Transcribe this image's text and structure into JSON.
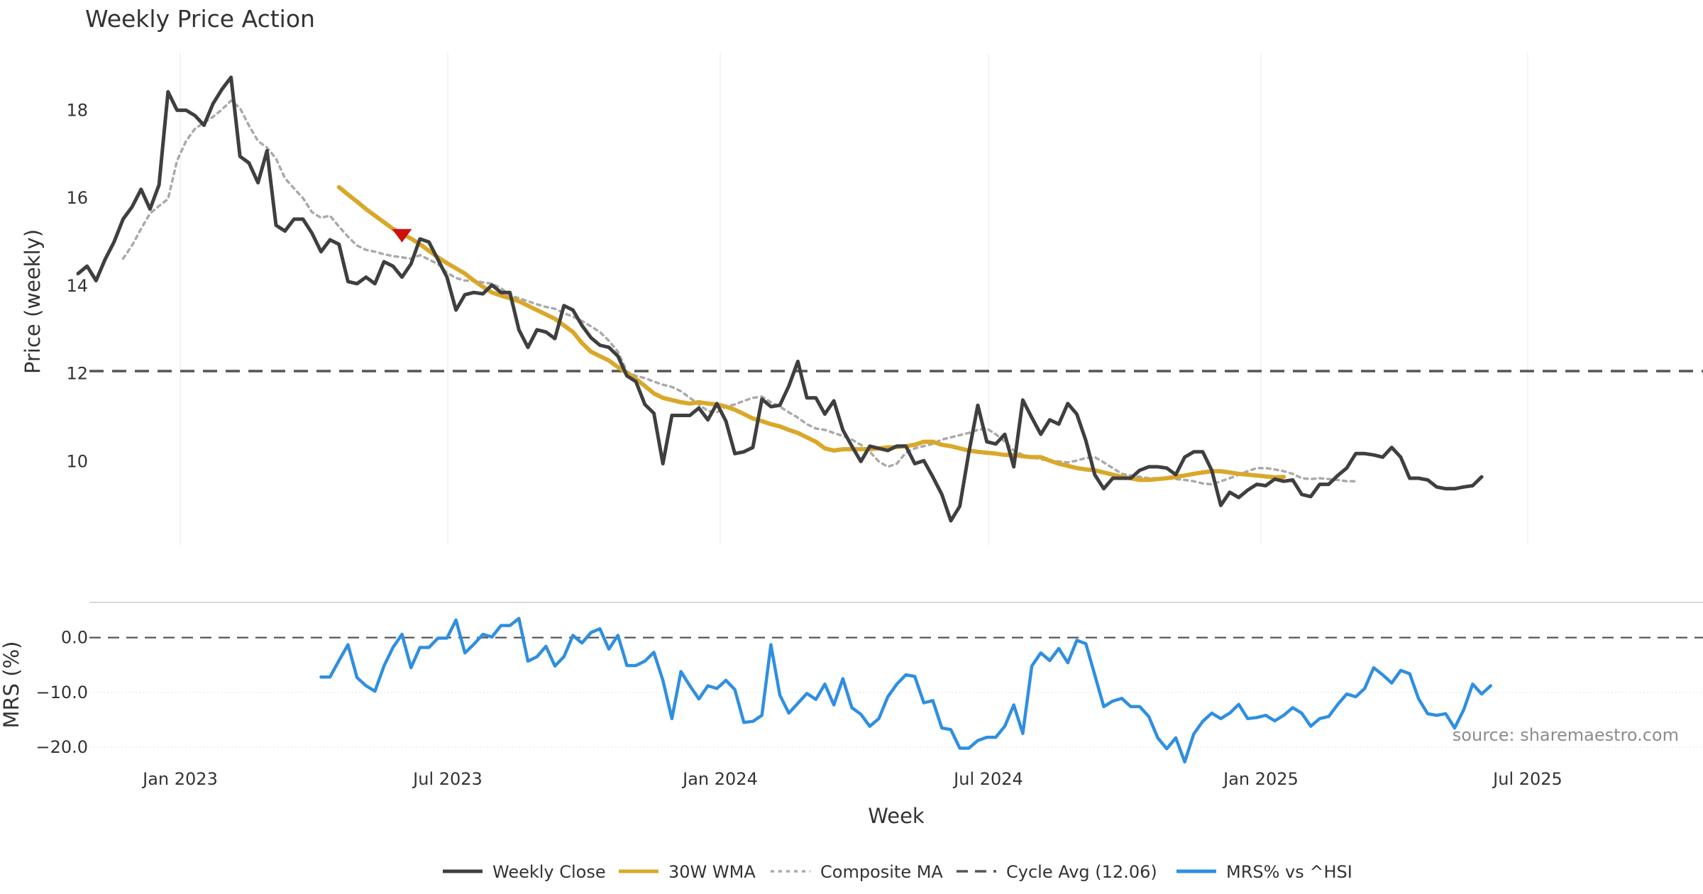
{
  "chart_data": {
    "type": "line",
    "title": "Weekly Price Action",
    "source": "source: sharemaestro.com",
    "xlabel": "Week",
    "x_tick_labels": [
      "Jan 2023",
      "Jul 2023",
      "Jan 2024",
      "Jul 2024",
      "Jan 2025",
      "Jul 2025"
    ],
    "price_panel": {
      "ylabel": "Price (weekly)",
      "ylim": [
        8.1,
        19.3
      ],
      "yticks": [
        10,
        12,
        14,
        16,
        18
      ],
      "ytick_labels": [
        "10",
        "12",
        "14",
        "16",
        "18"
      ],
      "cycle_avg": 12.06,
      "signal_marker": {
        "type": "sell-triangle",
        "week_index": 36,
        "value": 15.15,
        "color": "#cc1111"
      },
      "series": [
        {
          "name": "Weekly Close",
          "color": "#3f3f3f",
          "values": [
            14.28,
            14.45,
            14.12,
            14.6,
            15.0,
            15.52,
            15.8,
            16.2,
            15.75,
            16.3,
            18.42,
            18.0,
            18.0,
            17.88,
            17.66,
            18.15,
            18.48,
            18.75,
            16.95,
            16.8,
            16.35,
            17.08,
            15.38,
            15.25,
            15.52,
            15.52,
            15.2,
            14.78,
            15.05,
            14.95,
            14.1,
            14.05,
            14.2,
            14.05,
            14.55,
            14.45,
            14.2,
            14.5,
            15.07,
            15.0,
            14.6,
            14.2,
            13.45,
            13.8,
            13.85,
            13.82,
            14.02,
            13.85,
            13.85,
            13.0,
            12.6,
            13.0,
            12.95,
            12.8,
            13.55,
            13.45,
            13.1,
            12.82,
            12.65,
            12.6,
            12.4,
            11.95,
            11.82,
            11.3,
            11.1,
            9.95,
            11.05,
            11.05,
            11.05,
            11.22,
            10.95,
            11.32,
            10.92,
            10.18,
            10.22,
            10.32,
            11.42,
            11.25,
            11.28,
            11.72,
            12.28,
            11.45,
            11.45,
            11.08,
            11.38,
            10.72,
            10.35,
            10.0,
            10.35,
            10.3,
            10.25,
            10.35,
            10.35,
            9.95,
            10.02,
            9.65,
            9.25,
            8.65,
            8.98,
            10.2,
            11.28,
            10.45,
            10.4,
            10.62,
            9.88,
            11.4,
            11.0,
            10.62,
            10.95,
            10.85,
            11.32,
            11.08,
            10.48,
            9.7,
            9.38,
            9.62,
            9.62,
            9.62,
            9.8,
            9.88,
            9.88,
            9.85,
            9.7,
            10.1,
            10.22,
            10.22,
            9.8,
            9.0,
            9.3,
            9.18,
            9.35,
            9.48,
            9.45,
            9.6,
            9.55,
            9.58,
            9.25,
            9.2,
            9.48,
            9.48,
            9.68,
            9.85,
            10.18,
            10.18,
            10.15,
            10.1,
            10.32,
            10.1,
            9.62,
            9.62,
            9.58,
            9.42,
            9.38,
            9.38,
            9.42,
            9.45,
            9.65
          ]
        },
        {
          "name": "30W WMA",
          "color": "#d9a82a",
          "start_index": 29,
          "values": [
            16.25,
            16.08,
            15.92,
            15.75,
            15.6,
            15.45,
            15.3,
            15.18,
            15.08,
            14.95,
            14.8,
            14.65,
            14.52,
            14.4,
            14.28,
            14.12,
            13.98,
            13.85,
            13.78,
            13.72,
            13.65,
            13.55,
            13.45,
            13.35,
            13.25,
            13.1,
            12.95,
            12.7,
            12.5,
            12.4,
            12.3,
            12.15,
            12.02,
            11.88,
            11.72,
            11.55,
            11.45,
            11.4,
            11.35,
            11.32,
            11.35,
            11.32,
            11.3,
            11.25,
            11.18,
            11.08,
            10.98,
            10.92,
            10.85,
            10.8,
            10.72,
            10.65,
            10.55,
            10.45,
            10.3,
            10.25,
            10.28,
            10.28,
            10.28,
            10.28,
            10.3,
            10.32,
            10.33,
            10.35,
            10.38,
            10.45,
            10.45,
            10.38,
            10.35,
            10.3,
            10.25,
            10.22,
            10.2,
            10.18,
            10.15,
            10.15,
            10.12,
            10.1,
            10.1,
            10.02,
            9.95,
            9.9,
            9.85,
            9.82,
            9.8,
            9.75,
            9.7,
            9.65,
            9.62,
            9.58,
            9.58,
            9.6,
            9.62,
            9.65,
            9.68,
            9.72,
            9.75,
            9.78,
            9.78,
            9.75,
            9.72,
            9.7,
            9.68,
            9.66,
            9.64,
            9.65
          ]
        },
        {
          "name": "Composite MA",
          "color": "#aaaaaa",
          "start_index": 5,
          "values": [
            14.62,
            14.92,
            15.3,
            15.65,
            15.82,
            15.98,
            16.85,
            17.3,
            17.58,
            17.72,
            17.85,
            18.02,
            18.22,
            18.05,
            17.65,
            17.3,
            17.15,
            16.9,
            16.45,
            16.22,
            16.0,
            15.68,
            15.55,
            15.6,
            15.35,
            15.12,
            14.92,
            14.82,
            14.78,
            14.72,
            14.68,
            14.65,
            14.62,
            14.7,
            14.6,
            14.5,
            14.3,
            14.18,
            14.12,
            14.12,
            14.08,
            14.05,
            13.95,
            13.78,
            13.72,
            13.65,
            13.58,
            13.52,
            13.48,
            13.38,
            13.3,
            13.2,
            13.08,
            12.95,
            12.75,
            12.5,
            12.05,
            11.95,
            11.9,
            11.82,
            11.75,
            11.7,
            11.6,
            11.45,
            11.3,
            11.15,
            11.12,
            11.25,
            11.3,
            11.38,
            11.45,
            11.48,
            11.35,
            11.25,
            11.12,
            11.0,
            10.85,
            10.75,
            10.72,
            10.65,
            10.58,
            10.5,
            10.38,
            10.22,
            10.0,
            9.88,
            9.95,
            10.2,
            10.3,
            10.35,
            10.4,
            10.5,
            10.55,
            10.6,
            10.65,
            10.72,
            10.75,
            10.62,
            10.45,
            10.25,
            10.15,
            10.1,
            10.05,
            10.02,
            10.0,
            9.98,
            10.02,
            10.08,
            10.1,
            9.98,
            9.85,
            9.72,
            9.68,
            9.65,
            9.62,
            9.62,
            9.62,
            9.6,
            9.58,
            9.55,
            9.5,
            9.48,
            9.55,
            9.62,
            9.7,
            9.78,
            9.85,
            9.85,
            9.82,
            9.78,
            9.72,
            9.62,
            9.6,
            9.62,
            9.6,
            9.58,
            9.55,
            9.55
          ]
        }
      ]
    },
    "mrs_panel": {
      "ylabel": "MRS (%)",
      "ylim": [
        -23.5,
        5.0
      ],
      "yticks": [
        0,
        -10,
        -20
      ],
      "ytick_labels": [
        "0.0",
        "−10.0",
        "−20.0"
      ],
      "zero_line": 0,
      "series": [
        {
          "name": "MRS% vs ^HSI",
          "color": "#2f8fe0",
          "start_index": 27,
          "values": [
            -7.2,
            -7.2,
            -4.2,
            -1.3,
            -7.3,
            -8.8,
            -9.8,
            -5.2,
            -1.8,
            0.6,
            -5.5,
            -1.8,
            -1.8,
            -0.1,
            -0.1,
            3.2,
            -2.8,
            -1.2,
            0.6,
            0.1,
            2.2,
            2.2,
            3.5,
            -4.3,
            -3.5,
            -1.6,
            -5.2,
            -3.5,
            0.4,
            -1.0,
            0.9,
            1.6,
            -2.1,
            0.4,
            -5.1,
            -5.1,
            -4.3,
            -2.7,
            -7.8,
            -14.8,
            -6.2,
            -8.8,
            -11.2,
            -8.8,
            -9.3,
            -7.8,
            -9.5,
            -15.5,
            -15.3,
            -14.2,
            -1.3,
            -10.5,
            -13.8,
            -12.0,
            -10.2,
            -11.3,
            -8.5,
            -12.3,
            -7.5,
            -12.8,
            -14.0,
            -16.2,
            -14.8,
            -10.8,
            -8.5,
            -6.8,
            -7.1,
            -11.9,
            -11.5,
            -16.5,
            -16.8,
            -20.2,
            -20.2,
            -18.8,
            -18.2,
            -18.2,
            -16.2,
            -12.3,
            -17.5,
            -5.2,
            -2.8,
            -4.2,
            -2.0,
            -4.6,
            -0.5,
            -1.1,
            -6.8,
            -12.6,
            -11.6,
            -11.1,
            -12.6,
            -12.6,
            -14.4,
            -18.3,
            -20.3,
            -18.3,
            -22.7,
            -17.6,
            -15.3,
            -13.8,
            -14.8,
            -13.8,
            -12.2,
            -14.8,
            -14.6,
            -14.2,
            -15.2,
            -14.2,
            -12.8,
            -13.8,
            -16.2,
            -14.8,
            -14.4,
            -12.2,
            -10.3,
            -10.8,
            -9.3,
            -5.5,
            -6.8,
            -8.3,
            -6.0,
            -6.6,
            -11.2,
            -13.9,
            -14.2,
            -13.9,
            -16.5,
            -13.2,
            -8.5,
            -10.3,
            -8.8
          ]
        }
      ]
    },
    "legend": [
      {
        "label": "Weekly Close",
        "color": "#3f3f3f",
        "style": "solid"
      },
      {
        "label": "30W WMA",
        "color": "#d9a82a",
        "style": "solid"
      },
      {
        "label": "Composite MA",
        "color": "#aaaaaa",
        "style": "dotted"
      },
      {
        "label": "Cycle Avg (12.06)",
        "color": "#555555",
        "style": "dashed"
      },
      {
        "label": "MRS% vs ^HSI",
        "color": "#2f8fe0",
        "style": "solid"
      }
    ]
  }
}
